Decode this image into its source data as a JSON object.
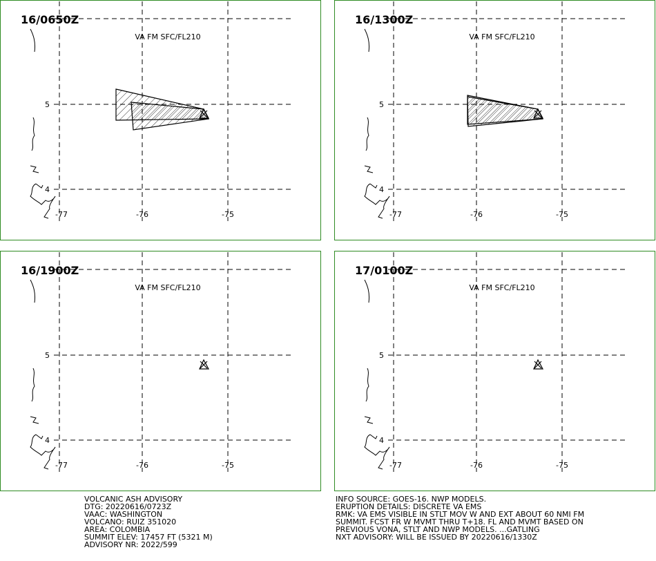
{
  "panels": [
    {
      "time": "16/0650Z",
      "level": "VA FM SFC/FL210",
      "lat_labels": [
        "5",
        "4"
      ],
      "lon_labels": [
        "-77",
        "-76",
        "-75"
      ]
    },
    {
      "time": "16/1300Z",
      "level": "VA FM SFC/FL210",
      "lat_labels": [
        "5",
        "4"
      ],
      "lon_labels": [
        "-77",
        "-76",
        "-75"
      ]
    },
    {
      "time": "16/1900Z",
      "level": "VA FM SFC/FL210",
      "lat_labels": [
        "5",
        "4"
      ],
      "lon_labels": [
        "-77",
        "-76",
        "-75"
      ]
    },
    {
      "time": "17/0100Z",
      "level": "VA FM SFC/FL210",
      "lat_labels": [
        "5",
        "4"
      ],
      "lon_labels": [
        "-77",
        "-76",
        "-75"
      ]
    }
  ],
  "advisory_left": [
    "VOLCANIC ASH ADVISORY",
    "DTG: 20220616/0723Z",
    "VAAC: WASHINGTON",
    "VOLCANO: RUIZ 351020",
    "AREA: COLOMBIA",
    "SUMMIT ELEV: 17457 FT (5321 M)",
    "ADVISORY NR: 2022/599"
  ],
  "advisory_right": [
    "INFO SOURCE: GOES-16. NWP MODELS.",
    "ERUPTION DETAILS: DISCRETE VA EMS",
    "RMK: VA EMS VISIBLE IN STLT MOV W AND EXT ABOUT 60 NMI FM",
    "SUMMIT. FCST FR W MVMT THRU T+18. FL AND MVMT BASED ON",
    "PREVIOUS VONA, STLT AND NWP MODELS. ...GATLING",
    "NXT ADVISORY: WILL BE ISSUED BY 20220616/1330Z"
  ]
}
